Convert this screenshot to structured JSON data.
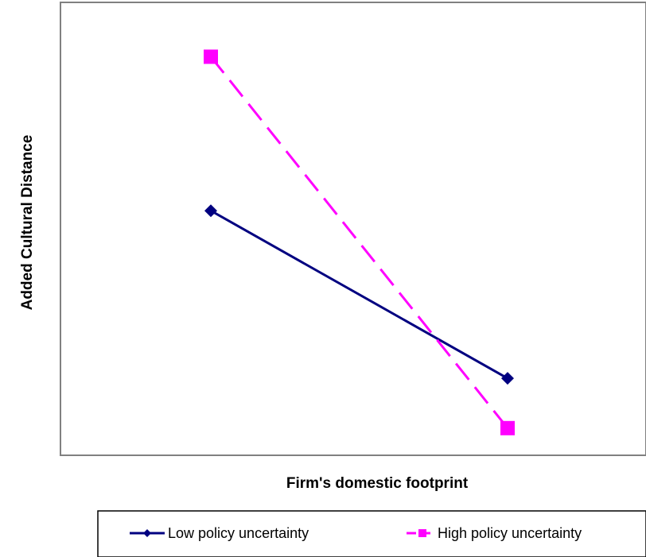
{
  "chart_data": {
    "type": "line",
    "title": "",
    "xlabel": "Firm's domestic footprint",
    "ylabel": "Added Cultural Distance",
    "x_positions": [
      0,
      1
    ],
    "ylim": [
      0,
      1
    ],
    "grid": false,
    "legend_position": "bottom",
    "series": [
      {
        "name": "Low policy uncertainty",
        "values": [
          0.54,
          0.17
        ],
        "color": "#000080",
        "marker": "diamond",
        "line_style": "solid"
      },
      {
        "name": "High policy uncertainty",
        "values": [
          0.88,
          0.06
        ],
        "color": "#FF00FF",
        "marker": "square",
        "line_style": "dashed"
      }
    ]
  }
}
